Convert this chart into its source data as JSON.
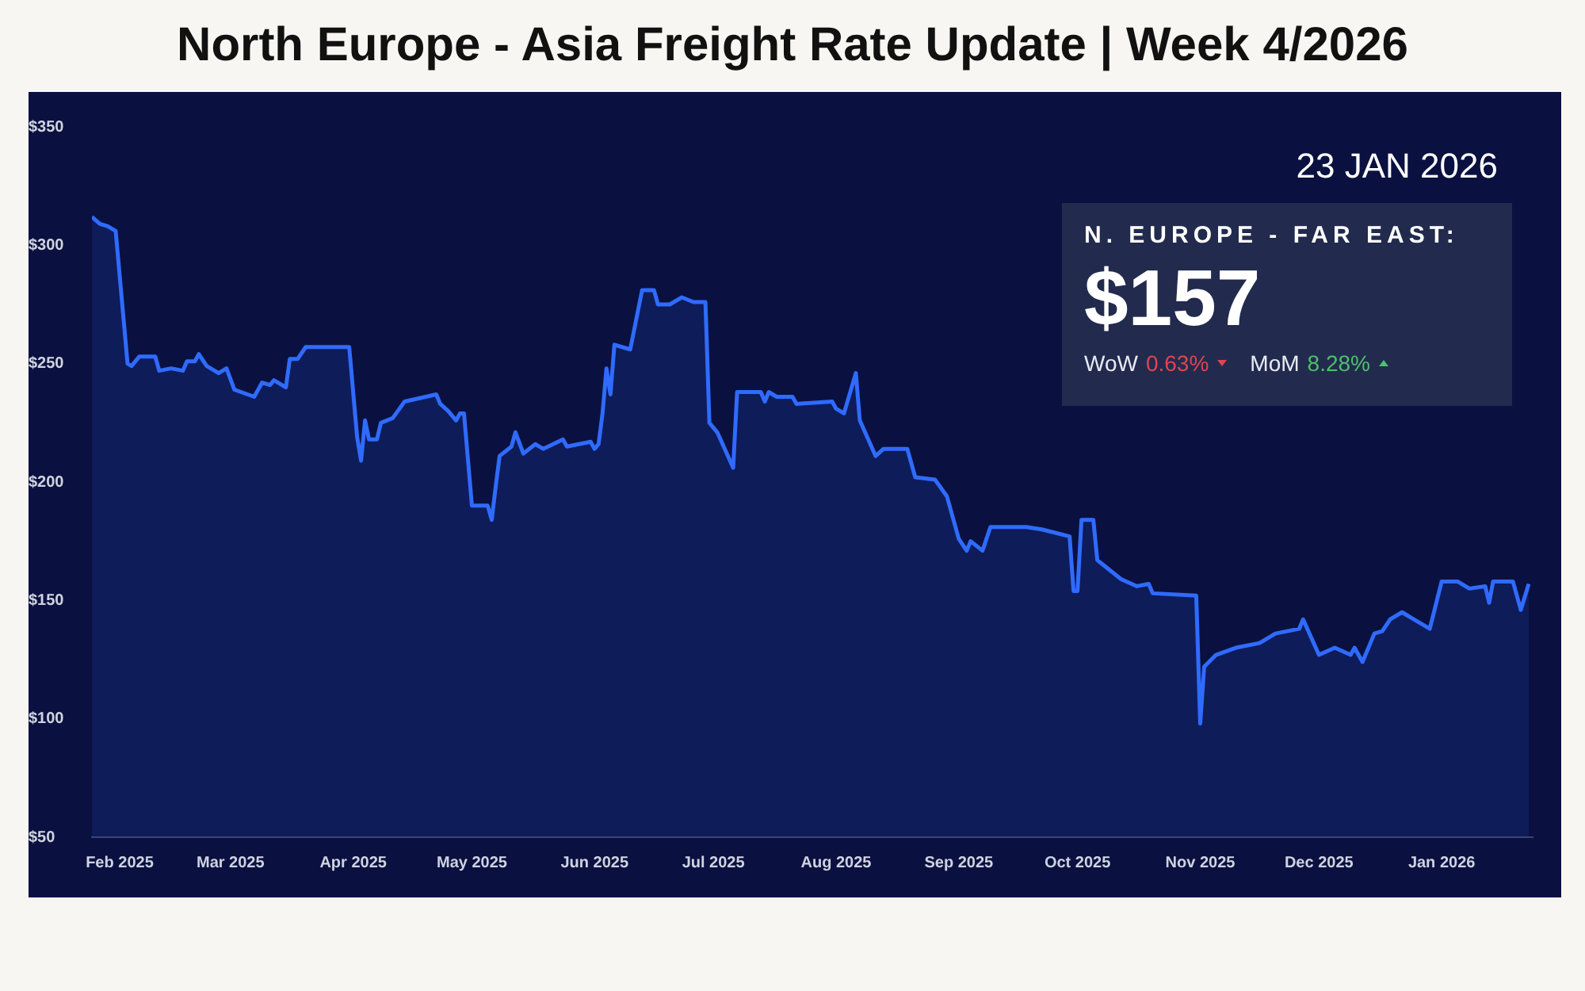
{
  "chart_data": {
    "type": "area",
    "title": "North Europe - Asia Freight Rate Update | Week 4/2026",
    "annotations": [
      "23 JAN 2026",
      "N. EUROPE - FAR EAST:",
      "$157",
      "WoW",
      "0.63%",
      "MoM",
      "8.28%"
    ],
    "series": [
      {
        "color": "#2f6bff",
        "x": [
          "2025-01-25",
          "2025-01-27",
          "2025-01-29",
          "2025-01-31",
          "2025-02-03",
          "2025-02-04",
          "2025-02-06",
          "2025-02-10",
          "2025-02-11",
          "2025-02-14",
          "2025-02-17",
          "2025-02-18",
          "2025-02-20",
          "2025-02-21",
          "2025-02-23",
          "2025-02-26",
          "2025-02-28",
          "2025-03-02",
          "2025-03-07",
          "2025-03-09",
          "2025-03-11",
          "2025-03-12",
          "2025-03-15",
          "2025-03-16",
          "2025-03-18",
          "2025-03-20",
          "2025-03-31",
          "2025-04-02",
          "2025-04-03",
          "2025-04-04",
          "2025-04-05",
          "2025-04-07",
          "2025-04-08",
          "2025-04-11",
          "2025-04-14",
          "2025-04-22",
          "2025-04-23",
          "2025-04-25",
          "2025-04-27",
          "2025-04-28",
          "2025-04-29",
          "2025-05-01",
          "2025-05-05",
          "2025-05-06",
          "2025-05-07",
          "2025-05-08",
          "2025-05-11",
          "2025-05-12",
          "2025-05-14",
          "2025-05-17",
          "2025-05-19",
          "2025-05-24",
          "2025-05-25",
          "2025-05-31",
          "2025-06-01",
          "2025-06-02",
          "2025-06-03",
          "2025-06-04",
          "2025-06-05",
          "2025-06-06",
          "2025-06-10",
          "2025-06-13",
          "2025-06-16",
          "2025-06-17",
          "2025-06-20",
          "2025-06-23",
          "2025-06-26",
          "2025-06-29",
          "2025-06-30",
          "2025-07-02",
          "2025-07-06",
          "2025-07-07",
          "2025-07-13",
          "2025-07-14",
          "2025-07-15",
          "2025-07-17",
          "2025-07-21",
          "2025-07-22",
          "2025-07-31",
          "2025-08-01",
          "2025-08-03",
          "2025-08-06",
          "2025-08-07",
          "2025-08-11",
          "2025-08-13",
          "2025-08-19",
          "2025-08-21",
          "2025-08-26",
          "2025-08-29",
          "2025-09-01",
          "2025-09-03",
          "2025-09-04",
          "2025-09-07",
          "2025-09-09",
          "2025-09-18",
          "2025-09-22",
          "2025-09-29",
          "2025-09-30",
          "2025-10-01",
          "2025-10-02",
          "2025-10-05",
          "2025-10-06",
          "2025-10-09",
          "2025-10-12",
          "2025-10-16",
          "2025-10-19",
          "2025-10-20",
          "2025-10-31",
          "2025-11-01",
          "2025-11-02",
          "2025-11-05",
          "2025-11-10",
          "2025-11-16",
          "2025-11-20",
          "2025-11-26",
          "2025-11-27",
          "2025-12-01",
          "2025-12-05",
          "2025-12-09",
          "2025-12-10",
          "2025-12-12",
          "2025-12-15",
          "2025-12-17",
          "2025-12-19",
          "2025-12-22",
          "2025-12-29",
          "2026-01-01",
          "2026-01-05",
          "2026-01-08",
          "2026-01-12",
          "2026-01-13",
          "2026-01-14",
          "2026-01-19",
          "2026-01-21",
          "2026-01-23"
        ],
        "values": [
          312,
          309,
          308,
          306,
          250,
          249,
          253,
          253,
          247,
          248,
          247,
          251,
          251,
          254,
          249,
          246,
          248,
          239,
          236,
          242,
          241,
          243,
          240,
          252,
          252,
          257,
          257,
          219,
          209,
          226,
          218,
          218,
          225,
          227,
          234,
          237,
          233,
          230,
          226,
          229,
          229,
          190,
          190,
          184,
          198,
          211,
          215,
          221,
          212,
          216,
          214,
          218,
          215,
          217,
          214,
          216,
          229,
          248,
          237,
          258,
          256,
          281,
          281,
          275,
          275,
          278,
          276,
          276,
          225,
          221,
          206,
          238,
          238,
          234,
          238,
          236,
          236,
          233,
          234,
          231,
          229,
          246,
          226,
          211,
          214,
          214,
          202,
          201,
          194,
          176,
          171,
          175,
          171,
          181,
          181,
          180,
          177,
          154,
          154,
          184,
          184,
          167,
          163,
          159,
          156,
          157,
          153,
          152,
          98,
          122,
          127,
          130,
          132,
          136,
          138,
          142,
          127,
          130,
          127,
          130,
          124,
          136,
          137,
          142,
          145,
          138,
          158,
          158,
          155,
          156,
          149,
          158,
          158,
          146,
          157
        ]
      }
    ],
    "xlim": [
      "2025-01-25",
      "2026-01-24"
    ],
    "xticks": [
      {
        "value": "2025-02-01",
        "label": "Feb 2025"
      },
      {
        "value": "2025-03-01",
        "label": "Mar 2025"
      },
      {
        "value": "2025-04-01",
        "label": "Apr 2025"
      },
      {
        "value": "2025-05-01",
        "label": "May 2025"
      },
      {
        "value": "2025-06-01",
        "label": "Jun 2025"
      },
      {
        "value": "2025-07-01",
        "label": "Jul 2025"
      },
      {
        "value": "2025-08-01",
        "label": "Aug 2025"
      },
      {
        "value": "2025-09-01",
        "label": "Sep 2025"
      },
      {
        "value": "2025-10-01",
        "label": "Oct 2025"
      },
      {
        "value": "2025-11-01",
        "label": "Nov 2025"
      },
      {
        "value": "2025-12-01",
        "label": "Dec 2025"
      },
      {
        "value": "2026-01-01",
        "label": "Jan 2026"
      }
    ],
    "ylim": [
      50,
      350
    ],
    "yticks": [
      {
        "value": 50,
        "label": "$50"
      },
      {
        "value": 100,
        "label": "$100"
      },
      {
        "value": 150,
        "label": "$150"
      },
      {
        "value": 200,
        "label": "$200"
      },
      {
        "value": 250,
        "label": "$250"
      },
      {
        "value": 300,
        "label": "$300"
      },
      {
        "value": 350,
        "label": "$350"
      }
    ],
    "grid": false,
    "legend": false,
    "marker": "none",
    "line_style": "solid"
  }
}
